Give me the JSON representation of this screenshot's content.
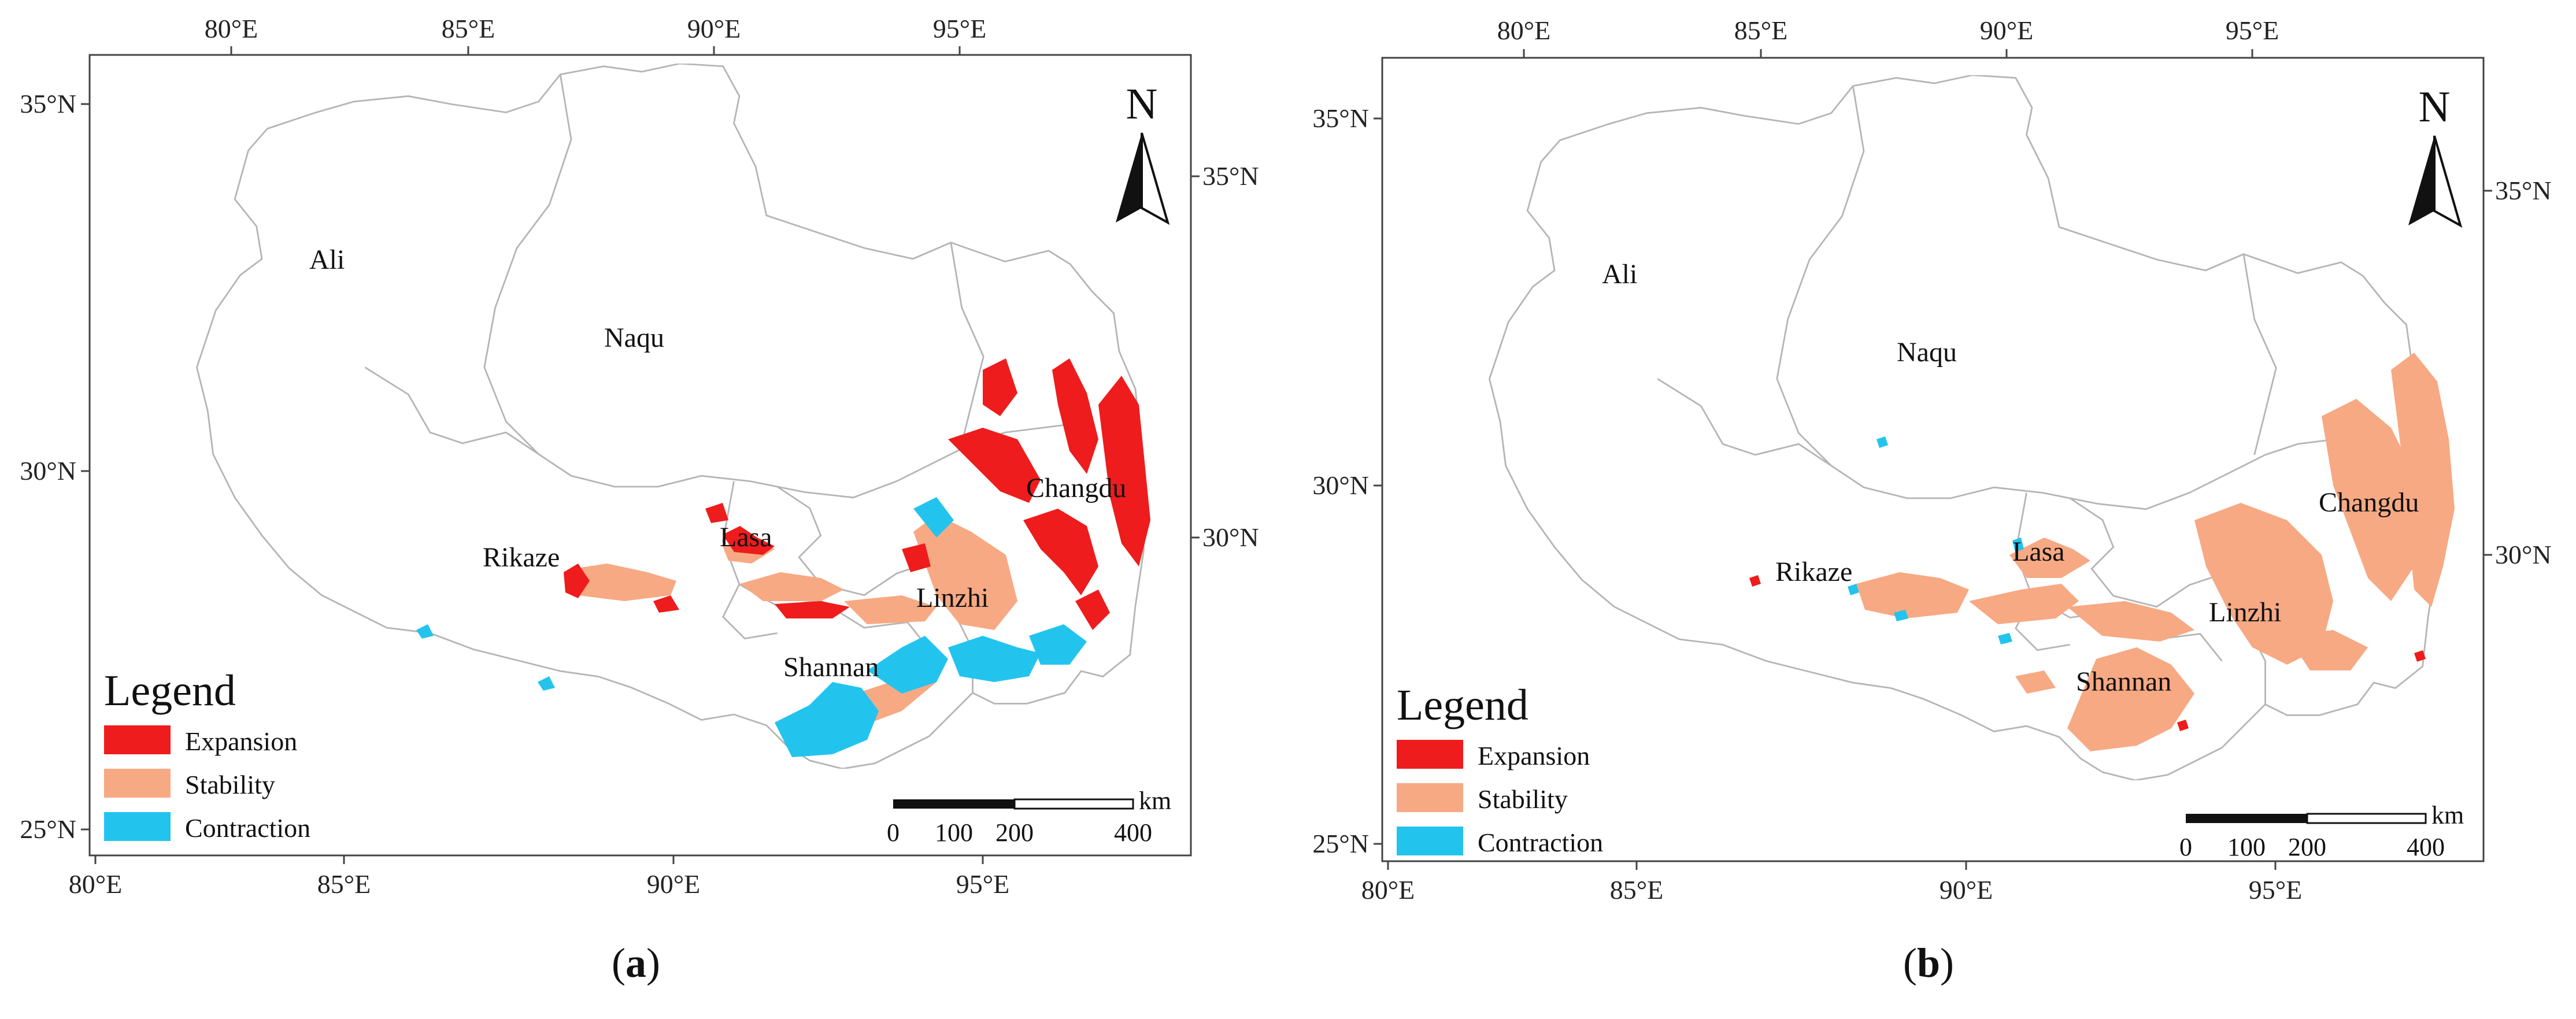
{
  "panels": [
    {
      "id": "a",
      "caption_open": "(",
      "caption_letter": "a",
      "caption_close": ")",
      "top_ticks": [
        "80°E",
        "85°E",
        "90°E",
        "95°E"
      ],
      "bottom_ticks": [
        "80°E",
        "85°E",
        "90°E",
        "95°E"
      ],
      "left_ticks": [
        "35°N",
        "30°N",
        "25°N"
      ],
      "right_ticks": [
        "35°N",
        "30°N"
      ],
      "regions": [
        "Ali",
        "Naqu",
        "Changdu",
        "Rikaze",
        "Lasa",
        "Linzhi",
        "Shannan"
      ],
      "north": "N",
      "legend": {
        "title": "Legend",
        "items": [
          {
            "label": "Expansion",
            "color": "#ee1c1c"
          },
          {
            "label": "Stability",
            "color": "#f7a983"
          },
          {
            "label": "Contraction",
            "color": "#22c4ee"
          }
        ]
      },
      "scale": {
        "unit": "km",
        "labels": [
          "0",
          "100",
          "200",
          "400"
        ]
      }
    },
    {
      "id": "b",
      "caption_open": "(",
      "caption_letter": "b",
      "caption_close": ")",
      "top_ticks": [
        "80°E",
        "85°E",
        "90°E",
        "95°E"
      ],
      "bottom_ticks": [
        "80°E",
        "85°E",
        "90°E",
        "95°E"
      ],
      "left_ticks": [
        "35°N",
        "30°N",
        "25°N"
      ],
      "right_ticks": [
        "35°N",
        "30°N"
      ],
      "regions": [
        "Ali",
        "Naqu",
        "Changdu",
        "Rikaze",
        "Lasa",
        "Linzhi",
        "Shannan"
      ],
      "north": "N",
      "legend": {
        "title": "Legend",
        "items": [
          {
            "label": "Expansion",
            "color": "#ee1c1c"
          },
          {
            "label": "Stability",
            "color": "#f7a983"
          },
          {
            "label": "Contraction",
            "color": "#22c4ee"
          }
        ]
      },
      "scale": {
        "unit": "km",
        "labels": [
          "0",
          "100",
          "200",
          "400"
        ]
      }
    }
  ],
  "colors": {
    "border": "#b5b5b5",
    "frame": "#444444"
  }
}
